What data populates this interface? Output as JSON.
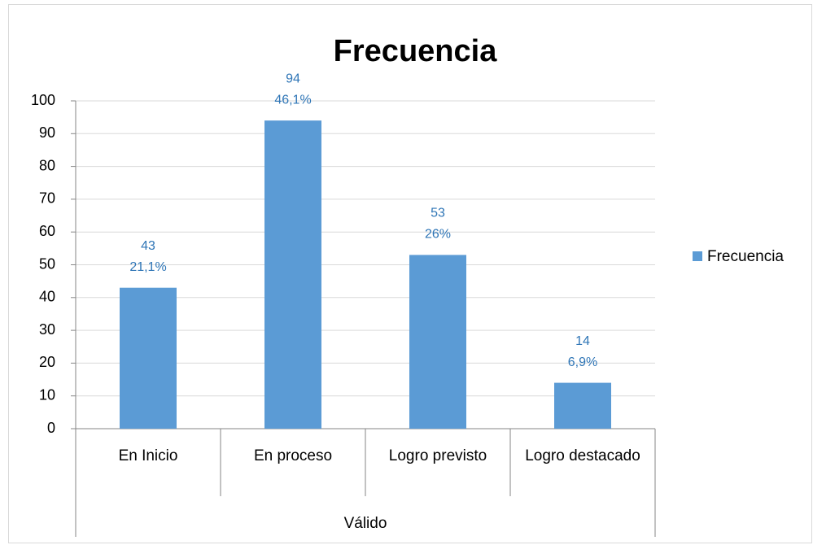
{
  "chart_data": {
    "type": "bar",
    "title": "Frecuencia",
    "categories": [
      "En Inicio",
      "En proceso",
      "Logro previsto",
      "Logro destacado"
    ],
    "x_group_label": "Válido",
    "series": [
      {
        "name": "Frecuencia",
        "color": "#5b9bd5",
        "values": [
          43,
          94,
          53,
          14
        ]
      }
    ],
    "percent_labels": [
      "21,1%",
      "46,1%",
      "26%",
      "6,9%"
    ],
    "ylim": [
      0,
      100
    ],
    "yticks": [
      0,
      10,
      20,
      30,
      40,
      50,
      60,
      70,
      80,
      90,
      100
    ],
    "grid": true,
    "legend": "right"
  }
}
